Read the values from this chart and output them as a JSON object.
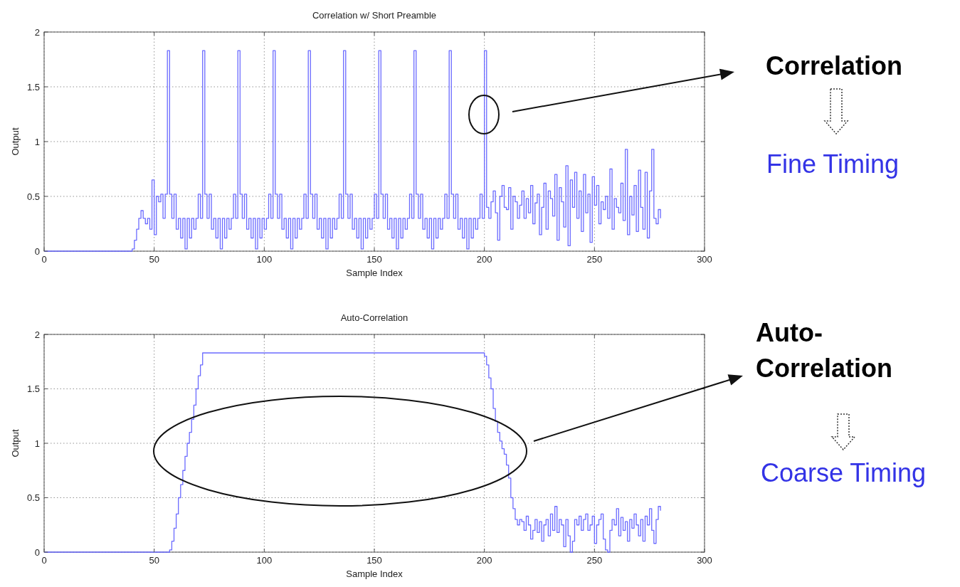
{
  "chart_data": [
    {
      "type": "step",
      "title": "Correlation w/ Short Preamble",
      "xlabel": "Sample Index",
      "ylabel": "Output",
      "xlim": [
        0,
        300
      ],
      "ylim": [
        0,
        2
      ],
      "xticks": [
        0,
        50,
        100,
        150,
        200,
        250,
        300
      ],
      "yticks": [
        0,
        0.5,
        1,
        1.5,
        2
      ],
      "grid": true,
      "annotations": [
        "Correlation",
        "Fine Timing"
      ],
      "series": [
        {
          "color": "#6b6bff",
          "x": [
            0,
            40,
            41,
            42,
            43,
            44,
            45,
            46,
            47,
            48,
            49,
            50,
            51,
            52,
            53,
            54,
            55,
            56,
            57,
            58,
            59,
            60,
            61,
            62,
            63,
            64,
            65,
            66,
            67,
            68,
            69,
            70,
            71,
            72,
            73,
            74,
            75,
            76,
            77,
            78,
            79,
            80,
            81,
            82,
            83,
            84,
            85,
            86,
            87,
            88,
            89,
            90,
            91,
            92,
            93,
            94,
            95,
            96,
            97,
            98,
            99,
            100,
            101,
            102,
            103,
            104,
            105,
            106,
            107,
            108,
            109,
            110,
            111,
            112,
            113,
            114,
            115,
            116,
            117,
            118,
            119,
            120,
            121,
            122,
            123,
            124,
            125,
            126,
            127,
            128,
            129,
            130,
            131,
            132,
            133,
            134,
            135,
            136,
            137,
            138,
            139,
            140,
            141,
            142,
            143,
            144,
            145,
            146,
            147,
            148,
            149,
            150,
            151,
            152,
            153,
            154,
            155,
            156,
            157,
            158,
            159,
            160,
            161,
            162,
            163,
            164,
            165,
            166,
            167,
            168,
            169,
            170,
            171,
            172,
            173,
            174,
            175,
            176,
            177,
            178,
            179,
            180,
            181,
            182,
            183,
            184,
            185,
            186,
            187,
            188,
            189,
            190,
            191,
            192,
            193,
            194,
            195,
            196,
            197,
            198,
            199,
            200,
            201,
            202,
            203,
            204,
            205,
            206,
            207,
            208,
            209,
            210,
            211,
            212,
            213,
            214,
            215,
            216,
            217,
            218,
            219,
            220,
            221,
            222,
            223,
            224,
            225,
            226,
            227,
            228,
            229,
            230,
            231,
            232,
            233,
            234,
            235,
            236,
            237,
            238,
            239,
            240,
            241,
            242,
            243,
            244,
            245,
            246,
            247,
            248,
            249,
            250,
            251,
            252,
            253,
            254,
            255,
            256,
            257,
            258,
            259,
            260,
            261,
            262,
            263,
            264,
            265,
            266,
            267,
            268,
            269,
            270,
            271,
            272,
            273,
            274,
            275,
            276,
            277,
            278,
            279,
            280
          ],
          "values": [
            0,
            0.02,
            0.1,
            0.2,
            0.3,
            0.37,
            0.3,
            0.25,
            0.3,
            0.2,
            0.65,
            0.15,
            0.5,
            0.45,
            0.52,
            0.3,
            0.52,
            1.83,
            0.52,
            0.3,
            0.52,
            0.2,
            0.3,
            0.12,
            0.3,
            0.02,
            0.3,
            0.12,
            0.3,
            0.2,
            0.3,
            0.52,
            0.3,
            1.83,
            0.52,
            0.3,
            0.52,
            0.2,
            0.3,
            0.12,
            0.3,
            0.02,
            0.3,
            0.12,
            0.3,
            0.2,
            0.3,
            0.52,
            0.3,
            1.83,
            0.52,
            0.3,
            0.52,
            0.2,
            0.3,
            0.12,
            0.3,
            0.02,
            0.3,
            0.12,
            0.3,
            0.2,
            0.3,
            0.52,
            0.3,
            1.83,
            0.52,
            0.3,
            0.52,
            0.2,
            0.3,
            0.12,
            0.3,
            0.02,
            0.3,
            0.12,
            0.3,
            0.2,
            0.3,
            0.52,
            0.3,
            1.83,
            0.52,
            0.3,
            0.52,
            0.2,
            0.3,
            0.12,
            0.3,
            0.02,
            0.3,
            0.12,
            0.3,
            0.2,
            0.3,
            0.52,
            0.3,
            1.83,
            0.52,
            0.3,
            0.52,
            0.2,
            0.3,
            0.12,
            0.3,
            0.02,
            0.3,
            0.12,
            0.3,
            0.2,
            0.3,
            0.52,
            0.3,
            1.83,
            0.52,
            0.3,
            0.52,
            0.2,
            0.3,
            0.12,
            0.3,
            0.02,
            0.3,
            0.12,
            0.3,
            0.2,
            0.3,
            0.52,
            0.3,
            1.83,
            0.52,
            0.3,
            0.52,
            0.2,
            0.3,
            0.12,
            0.3,
            0.02,
            0.3,
            0.12,
            0.3,
            0.2,
            0.3,
            0.52,
            0.3,
            1.83,
            0.52,
            0.3,
            0.52,
            0.2,
            0.3,
            0.12,
            0.3,
            0.02,
            0.3,
            0.12,
            0.3,
            0.2,
            0.3,
            0.52,
            0.3,
            1.83,
            0.4,
            0.3,
            0.45,
            0.55,
            0.35,
            0.1,
            0.5,
            0.6,
            0.4,
            0.38,
            0.58,
            0.2,
            0.5,
            0.45,
            0.3,
            0.42,
            0.55,
            0.3,
            0.48,
            0.35,
            0.6,
            0.25,
            0.44,
            0.52,
            0.15,
            0.4,
            0.62,
            0.2,
            0.55,
            0.48,
            0.32,
            0.7,
            0.1,
            0.58,
            0.45,
            0.22,
            0.78,
            0.05,
            0.65,
            0.4,
            0.72,
            0.3,
            0.55,
            0.18,
            0.7,
            0.35,
            0.52,
            0.08,
            0.68,
            0.42,
            0.6,
            0.25,
            0.45,
            0.38,
            0.5,
            0.3,
            0.75,
            0.2,
            0.48,
            0.4,
            0.35,
            0.62,
            0.28,
            0.93,
            0.15,
            0.5,
            0.33,
            0.6,
            0.18,
            0.74,
            0.4,
            0.2,
            0.72,
            0.12,
            0.55,
            0.93,
            0.3,
            0.25,
            0.38,
            0.3
          ]
        }
      ]
    },
    {
      "type": "step",
      "title": "Auto-Correlation",
      "xlabel": "Sample Index",
      "ylabel": "Output",
      "xlim": [
        0,
        300
      ],
      "ylim": [
        0,
        2
      ],
      "xticks": [
        0,
        50,
        100,
        150,
        200,
        250,
        300
      ],
      "yticks": [
        0,
        0.5,
        1,
        1.5,
        2
      ],
      "grid": true,
      "annotations": [
        "Auto-Correlation",
        "Coarse Timing"
      ],
      "series": [
        {
          "color": "#6b6bff",
          "x": [
            0,
            57,
            58,
            59,
            60,
            61,
            62,
            63,
            64,
            65,
            66,
            67,
            68,
            69,
            70,
            71,
            72,
            200,
            201,
            202,
            203,
            204,
            205,
            206,
            207,
            208,
            209,
            210,
            211,
            212,
            213,
            214,
            215,
            216,
            217,
            218,
            219,
            220,
            221,
            222,
            223,
            224,
            225,
            226,
            227,
            228,
            229,
            230,
            231,
            232,
            233,
            234,
            235,
            236,
            237,
            238,
            239,
            240,
            241,
            242,
            243,
            244,
            245,
            246,
            247,
            248,
            249,
            250,
            251,
            252,
            253,
            254,
            255,
            256,
            257,
            258,
            259,
            260,
            261,
            262,
            263,
            264,
            265,
            266,
            267,
            268,
            269,
            270,
            271,
            272,
            273,
            274,
            275,
            276,
            277,
            278,
            279,
            280
          ],
          "values": [
            0,
            0.02,
            0.1,
            0.22,
            0.35,
            0.5,
            0.62,
            0.75,
            0.88,
            1.0,
            1.1,
            1.22,
            1.35,
            1.5,
            1.62,
            1.72,
            1.83,
            1.8,
            1.72,
            1.6,
            1.5,
            1.32,
            1.2,
            1.1,
            1.02,
            0.95,
            0.9,
            0.8,
            0.68,
            0.5,
            0.4,
            0.3,
            0.25,
            0.3,
            0.28,
            0.2,
            0.33,
            0.25,
            0.12,
            0.2,
            0.3,
            0.18,
            0.28,
            0.1,
            0.25,
            0.3,
            0.15,
            0.35,
            0.2,
            0.42,
            0.18,
            0.3,
            0.25,
            0.05,
            0.3,
            0.15,
            0,
            0.1,
            0.3,
            0.25,
            0.33,
            0.2,
            0.3,
            0.35,
            0.2,
            0.25,
            0.33,
            0.08,
            0.25,
            0.3,
            0.35,
            0.12,
            0.02,
            0,
            0.2,
            0.3,
            0.25,
            0.4,
            0.15,
            0.32,
            0.2,
            0.28,
            0.1,
            0.3,
            0.22,
            0.35,
            0.25,
            0.15,
            0.3,
            0.1,
            0.33,
            0.25,
            0.4,
            0.2,
            0.08,
            0.3,
            0.42,
            0.38
          ]
        }
      ]
    }
  ]
}
